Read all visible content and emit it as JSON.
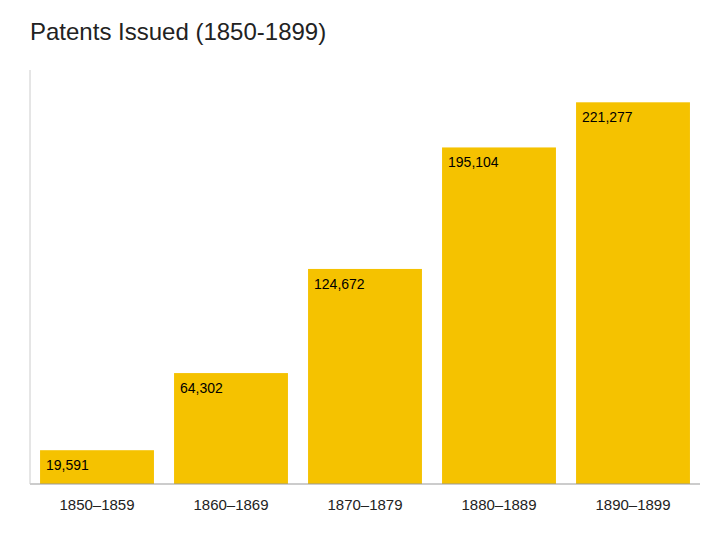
{
  "chart_data": {
    "type": "bar",
    "title": "Patents Issued (1850-1899)",
    "categories": [
      "1850–1859",
      "1860–1869",
      "1870–1879",
      "1880–1889",
      "1890–1899"
    ],
    "values": [
      19591,
      64302,
      124672,
      195104,
      221277
    ],
    "value_labels": [
      "19,591",
      "64,302",
      "124,672",
      "195,104",
      "221,277"
    ],
    "data_labels": true,
    "color": "#F5C200",
    "ylim": [
      0,
      240000
    ],
    "tick_labels": "x",
    "grid": false
  }
}
